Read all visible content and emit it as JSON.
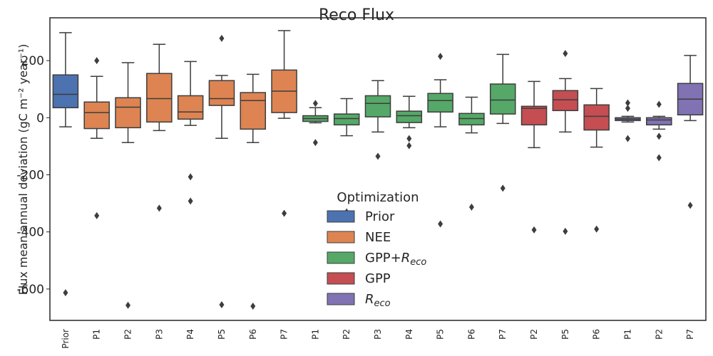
{
  "chart_data": {
    "type": "box",
    "title": "Reco Flux",
    "ylabel": "Flux mean annual deviation (gC m⁻² year⁻¹)",
    "xlabel": "",
    "ylim": [
      -710,
      350
    ],
    "yticks": [
      -600,
      -400,
      -200,
      0,
      200
    ],
    "grid": false,
    "categories": [
      "Prior",
      "P1",
      "P2",
      "P3",
      "P4",
      "P5",
      "P6",
      "P7",
      "P1",
      "P2",
      "P3",
      "P4",
      "P5",
      "P6",
      "P7",
      "P2",
      "P5",
      "P6",
      "P1",
      "P2",
      "P7"
    ],
    "groups": [
      {
        "name": "Prior",
        "color": "#4c72b0",
        "indices": [
          0
        ]
      },
      {
        "name": "NEE",
        "color": "#dd8452",
        "indices": [
          1,
          2,
          3,
          4,
          5,
          6,
          7
        ]
      },
      {
        "name": "GPP+R_eco",
        "color": "#55a868",
        "indices": [
          8,
          9,
          10,
          11,
          12,
          13,
          14
        ]
      },
      {
        "name": "GPP",
        "color": "#c44e52",
        "indices": [
          15,
          16,
          17
        ]
      },
      {
        "name": "R_eco",
        "color": "#8172b3",
        "indices": [
          18,
          19,
          20
        ]
      }
    ],
    "boxes": [
      {
        "q1": 35,
        "median": 82,
        "q3": 150,
        "wlo": -32,
        "whi": 298,
        "fliers": [
          -613
        ]
      },
      {
        "q1": -38,
        "median": 18,
        "q3": 55,
        "wlo": -72,
        "whi": 145,
        "fliers": [
          200,
          -343
        ]
      },
      {
        "q1": -35,
        "median": 37,
        "q3": 70,
        "wlo": -87,
        "whi": 193,
        "fliers": [
          -657
        ]
      },
      {
        "q1": -15,
        "median": 67,
        "q3": 155,
        "wlo": -45,
        "whi": 257,
        "fliers": [
          -317
        ]
      },
      {
        "q1": -5,
        "median": 20,
        "q3": 77,
        "wlo": -27,
        "whi": 197,
        "fliers": [
          -207,
          -292
        ]
      },
      {
        "q1": 43,
        "median": 67,
        "q3": 130,
        "wlo": -72,
        "whi": 148,
        "fliers": [
          278,
          -655
        ]
      },
      {
        "q1": -40,
        "median": 60,
        "q3": 88,
        "wlo": -87,
        "whi": 152,
        "fliers": [
          -660
        ]
      },
      {
        "q1": 18,
        "median": 93,
        "q3": 167,
        "wlo": -2,
        "whi": 305,
        "fliers": [
          -335
        ]
      },
      {
        "q1": -13,
        "median": -3,
        "q3": 7,
        "wlo": -18,
        "whi": 35,
        "fliers": [
          50,
          -87
        ]
      },
      {
        "q1": -25,
        "median": -3,
        "q3": 13,
        "wlo": -63,
        "whi": 67,
        "fliers": [
          -330
        ]
      },
      {
        "q1": 3,
        "median": 50,
        "q3": 77,
        "wlo": -50,
        "whi": 130,
        "fliers": [
          -135
        ]
      },
      {
        "q1": -17,
        "median": 7,
        "q3": 23,
        "wlo": -35,
        "whi": 75,
        "fliers": [
          -73,
          -98
        ]
      },
      {
        "q1": 20,
        "median": 60,
        "q3": 85,
        "wlo": -32,
        "whi": 133,
        "fliers": [
          215,
          -372
        ]
      },
      {
        "q1": -25,
        "median": -3,
        "q3": 15,
        "wlo": -53,
        "whi": 72,
        "fliers": [
          -313
        ]
      },
      {
        "q1": 13,
        "median": 62,
        "q3": 118,
        "wlo": -20,
        "whi": 222,
        "fliers": [
          -247
        ]
      },
      {
        "q1": -25,
        "median": 33,
        "q3": 40,
        "wlo": -105,
        "whi": 127,
        "fliers": [
          -393
        ]
      },
      {
        "q1": 25,
        "median": 63,
        "q3": 95,
        "wlo": -50,
        "whi": 137,
        "fliers": [
          225,
          -398
        ]
      },
      {
        "q1": -43,
        "median": 5,
        "q3": 45,
        "wlo": -103,
        "whi": 102,
        "fliers": [
          -390
        ]
      },
      {
        "q1": -10,
        "median": -5,
        "q3": 0,
        "wlo": -15,
        "whi": 5,
        "fliers": [
          52,
          33,
          -73
        ]
      },
      {
        "q1": -25,
        "median": -8,
        "q3": 0,
        "wlo": -40,
        "whi": 5,
        "fliers": [
          47,
          -65,
          -140
        ]
      },
      {
        "q1": 10,
        "median": 65,
        "q3": 120,
        "wlo": -10,
        "whi": 218,
        "fliers": [
          -307
        ]
      }
    ],
    "legend": {
      "title": "Optimization",
      "placement": "lower-center",
      "entries": [
        {
          "label": "Prior",
          "subscript": "",
          "color": "#4c72b0"
        },
        {
          "label": "NEE",
          "subscript": "",
          "color": "#dd8452"
        },
        {
          "label": "GPP+R",
          "subscript": "eco",
          "color": "#55a868"
        },
        {
          "label": "GPP",
          "subscript": "",
          "color": "#c44e52"
        },
        {
          "label": "R",
          "subscript": "eco",
          "color": "#8172b3"
        }
      ]
    }
  }
}
